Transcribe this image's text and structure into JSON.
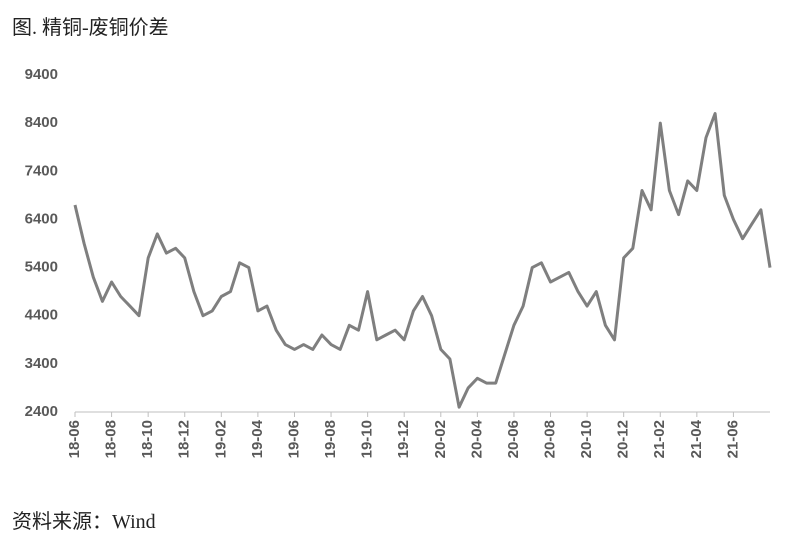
{
  "chart_data": {
    "type": "line",
    "title": "图. 精铜-废铜价差",
    "source": "资料来源：Wind",
    "categories": [
      "18-06",
      null,
      null,
      null,
      "18-08",
      null,
      null,
      null,
      "18-10",
      null,
      null,
      null,
      "18-12",
      null,
      null,
      null,
      "19-02",
      null,
      null,
      null,
      "19-04",
      null,
      null,
      null,
      "19-06",
      null,
      null,
      null,
      "19-08",
      null,
      null,
      null,
      "19-10",
      null,
      null,
      null,
      "19-12",
      null,
      null,
      null,
      "20-02",
      null,
      null,
      null,
      "20-04",
      null,
      null,
      null,
      "20-06",
      null,
      null,
      null,
      "20-08",
      null,
      null,
      null,
      "20-10",
      null,
      null,
      null,
      "20-12",
      null,
      null,
      null,
      "21-02",
      null,
      null,
      null,
      "21-04",
      null,
      null,
      null,
      "21-06",
      null,
      null,
      null,
      null
    ],
    "series": [
      {
        "name": "精铜-废铜价差",
        "color": "#7f7f7f",
        "values": [
          6700,
          5900,
          5200,
          4700,
          5100,
          4800,
          4600,
          4400,
          5600,
          6100,
          5700,
          5800,
          5600,
          4900,
          4400,
          4500,
          4800,
          4900,
          5500,
          5400,
          4500,
          4600,
          4100,
          3800,
          3700,
          3800,
          3700,
          4000,
          3800,
          3700,
          4200,
          4100,
          4900,
          3900,
          4000,
          4100,
          3900,
          4500,
          4800,
          4400,
          3700,
          3500,
          2500,
          2900,
          3100,
          3000,
          3000,
          3600,
          4200,
          4600,
          5400,
          5500,
          5100,
          5200,
          5300,
          4900,
          4600,
          4900,
          4200,
          3900,
          5600,
          5800,
          7000,
          6600,
          8400,
          7000,
          6500,
          7200,
          7000,
          8100,
          8600,
          6900,
          6400,
          6000,
          6300,
          6600,
          5400
        ]
      }
    ],
    "ylim": [
      2400,
      9400
    ],
    "yticks": [
      2400,
      3400,
      4400,
      5400,
      6400,
      7400,
      8400,
      9400
    ],
    "grid": false
  }
}
